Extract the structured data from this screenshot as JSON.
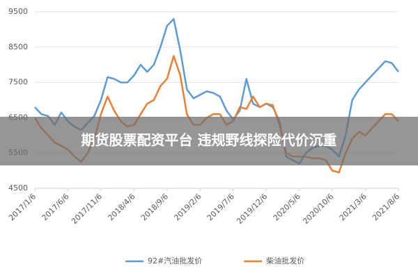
{
  "chart_data": {
    "type": "line",
    "categories": [
      "2017/1/6",
      null,
      null,
      null,
      null,
      "2017/6/6",
      null,
      null,
      null,
      null,
      "2017/11/6",
      null,
      null,
      null,
      null,
      "2018/4/6",
      null,
      null,
      null,
      null,
      "2018/9/6",
      null,
      null,
      null,
      null,
      "2019/2/6",
      null,
      null,
      null,
      null,
      "2019/7/6",
      null,
      null,
      null,
      null,
      "2019/12/6",
      null,
      null,
      null,
      null,
      "2020/5/6",
      null,
      null,
      null,
      null,
      "2020/10/6",
      null,
      null,
      null,
      null,
      "2021/3/6",
      null,
      null,
      null,
      null,
      "2021/8/6"
    ],
    "series": [
      {
        "name": "92#汽油批发价",
        "color": "#5b9bd5",
        "values": [
          6800,
          6600,
          6550,
          6300,
          6650,
          6400,
          6250,
          6150,
          6350,
          6550,
          7000,
          7650,
          7600,
          7500,
          7500,
          7700,
          8000,
          7800,
          8000,
          8500,
          9100,
          9300,
          8400,
          7300,
          7050,
          7150,
          7250,
          7200,
          7100,
          6700,
          6450,
          6700,
          7600,
          6900,
          6800,
          6900,
          6800,
          6400,
          5400,
          5300,
          5200,
          5500,
          5650,
          5700,
          5700,
          5600,
          5400,
          6000,
          7000,
          7300,
          7500,
          7700,
          7900,
          8100,
          8050,
          7800
        ]
      },
      {
        "name": "柴油批发价",
        "color": "#ed7d31",
        "values": [
          6500,
          6200,
          6000,
          5800,
          5700,
          5600,
          5400,
          5250,
          5500,
          5900,
          6600,
          7100,
          6700,
          6400,
          6250,
          6300,
          6600,
          6900,
          7000,
          7400,
          7600,
          8250,
          7700,
          6600,
          6300,
          6300,
          6500,
          6600,
          6600,
          6300,
          6400,
          6800,
          6750,
          7100,
          6800,
          6900,
          6850,
          6300,
          5500,
          5400,
          5400,
          5400,
          5350,
          5350,
          5300,
          5000,
          4950,
          5500,
          5900,
          6100,
          6000,
          6200,
          6400,
          6600,
          6600,
          6400
        ]
      }
    ],
    "ylim": [
      4500,
      9500
    ],
    "yticks": [
      4500,
      5500,
      6500,
      7500,
      8500,
      9500
    ],
    "grid": true,
    "legend": "bottom",
    "overlay": "期货股票配资平台 违规野线探险代价沉重"
  }
}
